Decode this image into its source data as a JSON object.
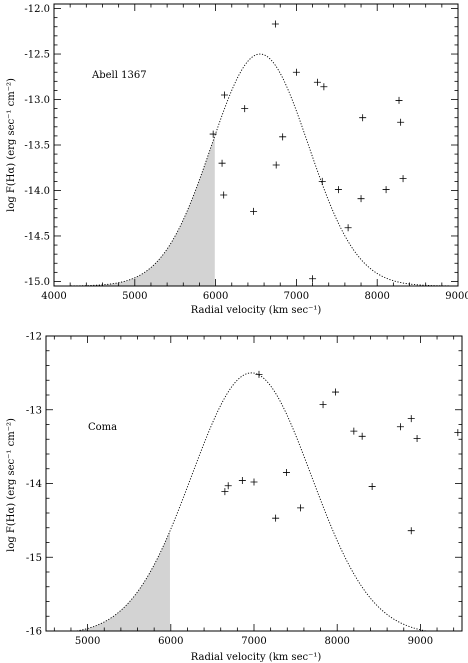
{
  "chart_data": [
    {
      "type": "scatter",
      "panel_label": "Abell 1367",
      "xlabel": "Radial velocity (km sec⁻¹)",
      "ylabel": "log F(Hα) (erg sec⁻¹ cm⁻²)",
      "xlim": [
        4000,
        9000
      ],
      "ylim": [
        -15.05,
        -11.95
      ],
      "xticks": [
        4000,
        5000,
        6000,
        7000,
        8000,
        9000
      ],
      "yticks": [
        -15.0,
        -14.5,
        -14.0,
        -13.5,
        -13.0,
        -12.5,
        -12.0
      ],
      "ytick_labels": [
        "-15.0",
        "-14.5",
        "-14.0",
        "-13.5",
        "-13.0",
        "-12.5",
        "-12.0"
      ],
      "grid": false,
      "curve": {
        "style": "dotted",
        "shape": "gaussian",
        "center": 6550,
        "sigma": 600,
        "peak": -12.5,
        "base": -15.05
      },
      "shaded_region": {
        "x_from": 4000,
        "x_to": 5990,
        "color": "#d3d3d3"
      },
      "points": [
        {
          "x": 6740,
          "y": -12.17
        },
        {
          "x": 6110,
          "y": -12.95
        },
        {
          "x": 6360,
          "y": -13.1
        },
        {
          "x": 5970,
          "y": -13.38
        },
        {
          "x": 6830,
          "y": -13.41
        },
        {
          "x": 6080,
          "y": -13.7
        },
        {
          "x": 6750,
          "y": -13.72
        },
        {
          "x": 6100,
          "y": -14.05
        },
        {
          "x": 6470,
          "y": -14.23
        },
        {
          "x": 7000,
          "y": -12.7
        },
        {
          "x": 7260,
          "y": -12.81
        },
        {
          "x": 7340,
          "y": -12.86
        },
        {
          "x": 7820,
          "y": -13.2
        },
        {
          "x": 8270,
          "y": -13.01
        },
        {
          "x": 8290,
          "y": -13.25
        },
        {
          "x": 7320,
          "y": -13.9
        },
        {
          "x": 7520,
          "y": -13.99
        },
        {
          "x": 7800,
          "y": -14.09
        },
        {
          "x": 8110,
          "y": -13.99
        },
        {
          "x": 8320,
          "y": -13.87
        },
        {
          "x": 7640,
          "y": -14.41
        },
        {
          "x": 7200,
          "y": -14.97
        }
      ]
    },
    {
      "type": "scatter",
      "panel_label": "Coma",
      "xlabel": "Radial velocity (km sec⁻¹)",
      "ylabel": "log F(Hα) (erg sec⁻¹ cm⁻²)",
      "xlim": [
        4500,
        9500
      ],
      "ylim": [
        -16.0,
        -12.0
      ],
      "xticks": [
        5000,
        6000,
        7000,
        8000,
        9000
      ],
      "yticks": [
        -16,
        -15,
        -14,
        -13,
        -12
      ],
      "ytick_labels": [
        "-16",
        "-15",
        "-14",
        "-13",
        "-12"
      ],
      "grid": false,
      "curve": {
        "style": "dotted",
        "shape": "gaussian",
        "center": 6970,
        "sigma": 720,
        "peak": -12.5,
        "base": -16.05
      },
      "shaded_region": {
        "x_from": 4500,
        "x_to": 5990,
        "color": "#d3d3d3"
      },
      "points": [
        {
          "x": 7060,
          "y": -12.52
        },
        {
          "x": 7980,
          "y": -12.76
        },
        {
          "x": 7830,
          "y": -12.93
        },
        {
          "x": 8890,
          "y": -13.12
        },
        {
          "x": 8200,
          "y": -13.29
        },
        {
          "x": 8300,
          "y": -13.36
        },
        {
          "x": 8760,
          "y": -13.23
        },
        {
          "x": 8960,
          "y": -13.39
        },
        {
          "x": 9450,
          "y": -13.31
        },
        {
          "x": 6650,
          "y": -14.11
        },
        {
          "x": 6690,
          "y": -14.03
        },
        {
          "x": 6860,
          "y": -13.96
        },
        {
          "x": 7000,
          "y": -13.98
        },
        {
          "x": 7390,
          "y": -13.85
        },
        {
          "x": 8420,
          "y": -14.04
        },
        {
          "x": 7260,
          "y": -14.47
        },
        {
          "x": 7560,
          "y": -14.33
        },
        {
          "x": 8890,
          "y": -14.64
        }
      ]
    }
  ]
}
